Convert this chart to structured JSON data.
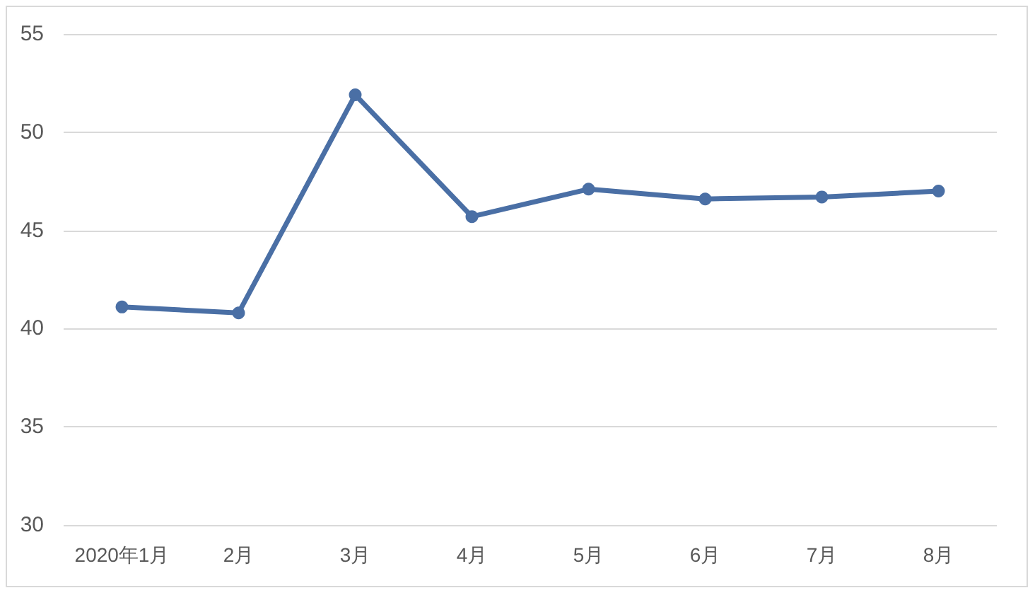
{
  "chart_data": {
    "type": "line",
    "categories": [
      "2020年1月",
      "2月",
      "3月",
      "4月",
      "5月",
      "6月",
      "7月",
      "8月"
    ],
    "series": [
      {
        "color": "#4a6fa5",
        "values": [
          41.1,
          40.8,
          51.9,
          45.7,
          47.1,
          46.6,
          46.7,
          47.0
        ]
      }
    ],
    "ylim": [
      30,
      55
    ],
    "yticks": [
      30,
      35,
      40,
      45,
      50,
      55
    ],
    "grid": "y",
    "marker": "circle",
    "line_style": "solid"
  }
}
